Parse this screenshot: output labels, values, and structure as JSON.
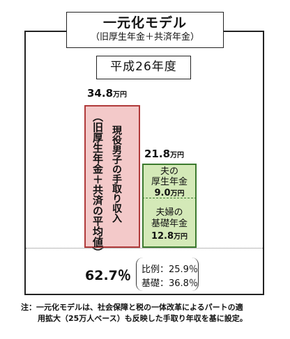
{
  "title": {
    "main": "一元化モデル",
    "sub": "（旧厚生年金＋共済年金）"
  },
  "year_label": "平成26年度",
  "chart_data": {
    "type": "bar",
    "unit": "万円",
    "bars": [
      {
        "label_outer": "（旧厚生年金＋共済の平均値）",
        "label_inner": "現役男子の手取り収入",
        "value": 34.8,
        "value_text": "34.8",
        "color": "#f3c9c9",
        "border_color": "#b03a3a"
      },
      {
        "value": 21.8,
        "value_text": "21.8",
        "color": "#d4e9b8",
        "border_color": "#3c7a2f",
        "segments": [
          {
            "label_line1": "夫の",
            "label_line2": "厚生年金",
            "value": 9.0,
            "value_text": "9.0"
          },
          {
            "label_line1": "夫婦の",
            "label_line2": "基礎年金",
            "value": 12.8,
            "value_text": "12.8"
          }
        ]
      }
    ]
  },
  "ratio": {
    "total": "62.7％",
    "line1": "比例：25.9％",
    "line2": "基礎：36.8％"
  },
  "note": {
    "line1": "注：一元化モデルは、社会保障と税の一体改革によるパートの適",
    "line2": "用拡大（25万人ベース）も反映した手取り年収を基に設定。"
  }
}
